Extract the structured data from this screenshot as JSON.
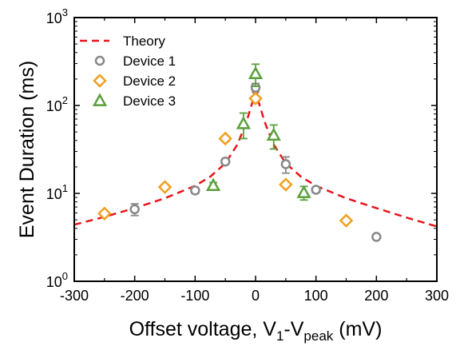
{
  "chart_data": {
    "type": "scatter",
    "xlabel": {
      "main": "Offset voltage, V",
      "sub1": "1",
      "mid": "-V",
      "sub2": "peak",
      "tail": " (mV)"
    },
    "ylabel": "Event Duration (ms)",
    "xlim": [
      -300,
      300
    ],
    "ylim": [
      1,
      1000
    ],
    "yscale": "log",
    "x_ticks": [
      -300,
      -200,
      -100,
      0,
      100,
      200,
      300
    ],
    "x_tick_labels": [
      "-300",
      "-200",
      "-100",
      "0",
      "100",
      "200",
      "300"
    ],
    "y_ticks": [
      1,
      10,
      100,
      1000
    ],
    "y_tick_labels": [
      {
        "base": "10",
        "exp": "0"
      },
      {
        "base": "10",
        "exp": "1"
      },
      {
        "base": "10",
        "exp": "2"
      },
      {
        "base": "10",
        "exp": "3"
      }
    ],
    "legend_position": "top-left",
    "grid": false,
    "series": [
      {
        "name": "Theory",
        "kind": "line",
        "style": "dashed",
        "color": "#e8141c",
        "x": [
          -300,
          -250,
          -200,
          -150,
          -100,
          -75,
          -50,
          -30,
          -15,
          -5,
          0,
          5,
          15,
          30,
          50,
          75,
          100,
          150,
          200,
          250,
          300
        ],
        "y": [
          4.4,
          5.4,
          6.8,
          8.8,
          12.2,
          15.5,
          22,
          36,
          65,
          110,
          170,
          110,
          65,
          36,
          22,
          15.5,
          12.2,
          8.8,
          6.8,
          5.3,
          4.2
        ]
      },
      {
        "name": "Device 1",
        "kind": "marker",
        "marker": "circle",
        "color": "#888888",
        "x": [
          -200,
          -100,
          -50,
          0,
          50,
          100,
          200
        ],
        "y": [
          6.6,
          10.8,
          23,
          160,
          21.5,
          11,
          3.2
        ],
        "err": [
          1.0,
          0.8,
          1.5,
          18,
          4.5,
          0.8,
          0.15
        ]
      },
      {
        "name": "Device 2",
        "kind": "marker",
        "marker": "diamond",
        "color": "#f0a020",
        "x": [
          -250,
          -150,
          -50,
          0,
          50,
          150
        ],
        "y": [
          5.9,
          11.8,
          42,
          120,
          12.6,
          4.9
        ],
        "err": [
          0.4,
          0.8,
          3,
          8,
          0.8,
          0.3
        ]
      },
      {
        "name": "Device 3",
        "kind": "marker",
        "marker": "triangle",
        "color": "#5aa03c",
        "x": [
          -70,
          -20,
          0,
          30,
          80
        ],
        "y": [
          12.3,
          62,
          230,
          46,
          10.2
        ],
        "err": [
          1.0,
          20,
          65,
          14,
          1.8
        ]
      }
    ]
  }
}
